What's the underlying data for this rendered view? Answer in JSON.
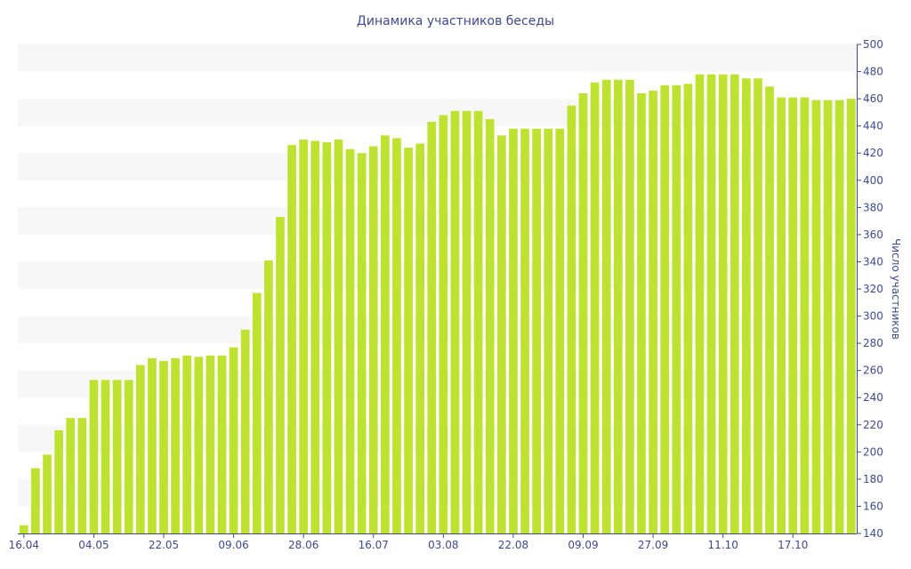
{
  "chart_data": {
    "type": "bar",
    "title": "Динамика участников беседы",
    "xlabel": "",
    "ylabel": "Число участников",
    "ylim": [
      140,
      500
    ],
    "yticks": [
      140,
      160,
      180,
      200,
      220,
      240,
      260,
      280,
      300,
      320,
      340,
      360,
      380,
      400,
      420,
      440,
      460,
      480,
      500
    ],
    "x_tick_labels": [
      {
        "label": "16.04",
        "index": 0
      },
      {
        "label": "04.05",
        "index": 6
      },
      {
        "label": "22.05",
        "index": 12
      },
      {
        "label": "09.06",
        "index": 18
      },
      {
        "label": "28.06",
        "index": 24
      },
      {
        "label": "16.07",
        "index": 30
      },
      {
        "label": "03.08",
        "index": 36
      },
      {
        "label": "22.08",
        "index": 42
      },
      {
        "label": "09.09",
        "index": 48
      },
      {
        "label": "27.09",
        "index": 54
      },
      {
        "label": "11.10",
        "index": 60
      },
      {
        "label": "17.10",
        "index": 66
      }
    ],
    "values": [
      146,
      188,
      198,
      216,
      225,
      225,
      253,
      253,
      253,
      253,
      264,
      269,
      267,
      269,
      271,
      270,
      271,
      271,
      277,
      290,
      317,
      341,
      373,
      426,
      430,
      429,
      428,
      430,
      423,
      420,
      425,
      433,
      431,
      424,
      427,
      443,
      448,
      451,
      451,
      451,
      445,
      433,
      438,
      438,
      438,
      438,
      438,
      455,
      464,
      472,
      474,
      474,
      474,
      464,
      466,
      470,
      470,
      471,
      478,
      478,
      478,
      478,
      475,
      475,
      469,
      461,
      461,
      461,
      459,
      459,
      459,
      460
    ],
    "y_axis_side": "right",
    "grid": "alternating horizontal bands",
    "legend": "none",
    "colors": {
      "bar": "#bde230",
      "band": "#f7f7f7",
      "text": "#3d4a8f",
      "axis": "#3d4a8f"
    }
  }
}
